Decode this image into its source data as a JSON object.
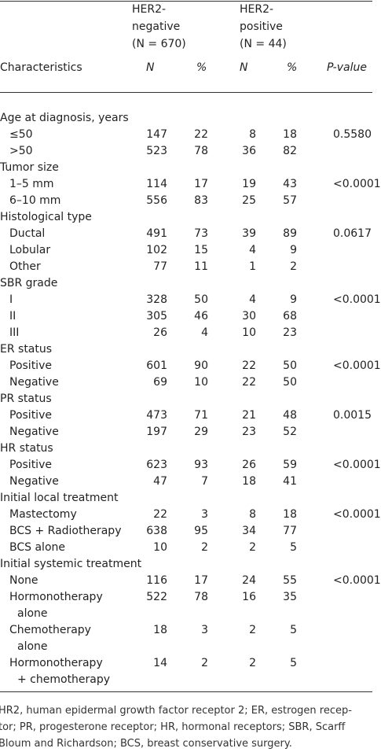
{
  "header": {
    "groups": [
      {
        "lines": [
          "HER2-",
          "negative",
          "(N = 670)"
        ]
      },
      {
        "lines": [
          "HER2-",
          "positive",
          "(N = 44)"
        ]
      }
    ],
    "columns": [
      "Characteristics",
      "N",
      "%",
      "N",
      "%",
      "P-value"
    ]
  },
  "sections": [
    {
      "title": "Age at diagnosis, years",
      "p_value": "0.5580",
      "rows": [
        {
          "label": [
            "≤50"
          ],
          "values": [
            147,
            22,
            8,
            18
          ]
        },
        {
          "label": [
            ">50"
          ],
          "values": [
            523,
            78,
            36,
            82
          ]
        }
      ]
    },
    {
      "title": "Tumor size",
      "p_value": "<0.0001",
      "rows": [
        {
          "label": [
            "1–5 mm"
          ],
          "values": [
            114,
            17,
            19,
            43
          ]
        },
        {
          "label": [
            "6–10 mm"
          ],
          "values": [
            556,
            83,
            25,
            57
          ]
        }
      ]
    },
    {
      "title": "Histological type",
      "p_value": "0.0617",
      "rows": [
        {
          "label": [
            "Ductal"
          ],
          "values": [
            491,
            73,
            39,
            89
          ]
        },
        {
          "label": [
            "Lobular"
          ],
          "values": [
            102,
            15,
            4,
            9
          ]
        },
        {
          "label": [
            "Other"
          ],
          "values": [
            77,
            11,
            1,
            2
          ]
        }
      ]
    },
    {
      "title": "SBR grade",
      "p_value": "<0.0001",
      "rows": [
        {
          "label": [
            "I"
          ],
          "values": [
            328,
            50,
            4,
            9
          ]
        },
        {
          "label": [
            "II"
          ],
          "values": [
            305,
            46,
            30,
            68
          ]
        },
        {
          "label": [
            "III"
          ],
          "values": [
            26,
            4,
            10,
            23
          ]
        }
      ]
    },
    {
      "title": "ER status",
      "p_value": "<0.0001",
      "rows": [
        {
          "label": [
            "Positive"
          ],
          "values": [
            601,
            90,
            22,
            50
          ]
        },
        {
          "label": [
            "Negative"
          ],
          "values": [
            69,
            10,
            22,
            50
          ]
        }
      ]
    },
    {
      "title": "PR status",
      "p_value": "0.0015",
      "rows": [
        {
          "label": [
            "Positive"
          ],
          "values": [
            473,
            71,
            21,
            48
          ]
        },
        {
          "label": [
            "Negative"
          ],
          "values": [
            197,
            29,
            23,
            52
          ]
        }
      ]
    },
    {
      "title": "HR status",
      "p_value": "<0.0001",
      "rows": [
        {
          "label": [
            "Positive"
          ],
          "values": [
            623,
            93,
            26,
            59
          ]
        },
        {
          "label": [
            "Negative"
          ],
          "values": [
            47,
            7,
            18,
            41
          ]
        }
      ]
    },
    {
      "title": "Initial local treatment",
      "p_value": "<0.0001",
      "rows": [
        {
          "label": [
            "Mastectomy"
          ],
          "values": [
            22,
            3,
            8,
            18
          ]
        },
        {
          "label": [
            "BCS + Radiotherapy"
          ],
          "values": [
            638,
            95,
            34,
            77
          ]
        },
        {
          "label": [
            "BCS alone"
          ],
          "values": [
            10,
            2,
            2,
            5
          ]
        }
      ]
    },
    {
      "title": "Initial systemic treatment",
      "p_value": "<0.0001",
      "rows": [
        {
          "label": [
            "None"
          ],
          "values": [
            116,
            17,
            24,
            55
          ]
        },
        {
          "label": [
            "Hormonotherapy",
            "alone"
          ],
          "values": [
            522,
            78,
            16,
            35
          ]
        },
        {
          "label": [
            "Chemotherapy",
            "alone"
          ],
          "values": [
            18,
            3,
            2,
            5
          ]
        },
        {
          "label": [
            "Hormonotherapy",
            "+ chemotherapy"
          ],
          "values": [
            14,
            2,
            2,
            5
          ]
        }
      ]
    }
  ],
  "footnote": {
    "lines": [
      "HR2, human epidermal growth factor receptor 2; ER, estrogen recep-",
      "tor; PR, progesterone receptor; HR, hormonal receptors; SBR, Scarff",
      "Bloum and Richardson; BCS, breast conservative surgery."
    ]
  }
}
